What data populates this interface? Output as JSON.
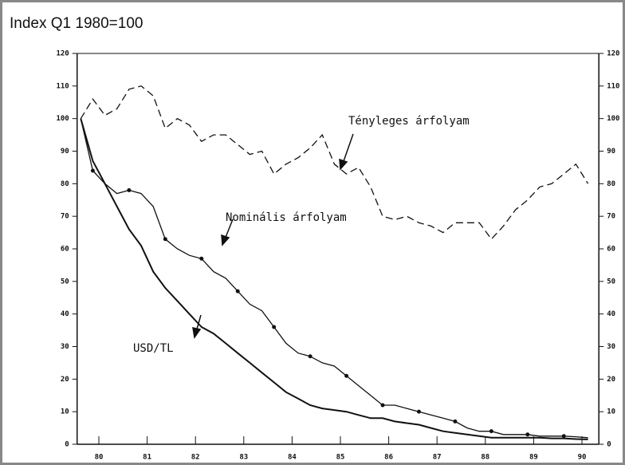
{
  "chart_data": {
    "type": "line",
    "title": "Index Q1 1980=100",
    "x": [
      79.625,
      79.875,
      80.125,
      80.375,
      80.625,
      80.875,
      81.125,
      81.375,
      81.625,
      81.875,
      82.125,
      82.375,
      82.625,
      82.875,
      83.125,
      83.375,
      83.625,
      83.875,
      84.125,
      84.375,
      84.625,
      84.875,
      85.125,
      85.375,
      85.625,
      85.875,
      86.125,
      86.375,
      86.625,
      86.875,
      87.125,
      87.375,
      87.625,
      87.875,
      88.125,
      88.375,
      88.625,
      88.875,
      89.125,
      89.375,
      89.625,
      89.875,
      90.125
    ],
    "series": [
      {
        "name": "Tényleges árfolyam",
        "color": "#111111",
        "dashed": true,
        "values": [
          100,
          106,
          101,
          103,
          109,
          110,
          107,
          97,
          100,
          98,
          93,
          95,
          95,
          92,
          89,
          90,
          83,
          86,
          88,
          91,
          95,
          86,
          83,
          85,
          79,
          70,
          69,
          70,
          68,
          67,
          65,
          68,
          68,
          68,
          63,
          67,
          72,
          75,
          79,
          80,
          83,
          86,
          80
        ]
      },
      {
        "name": "Nominális árfolyam",
        "color": "#111111",
        "dashed": false,
        "markers": true,
        "values": [
          100,
          84,
          80,
          77,
          78,
          77,
          73,
          63,
          60,
          58,
          57,
          53,
          51,
          47,
          43,
          41,
          36,
          31,
          28,
          27,
          25,
          24,
          21,
          18,
          15,
          12,
          12,
          11,
          10,
          9,
          8,
          7,
          5,
          4,
          4,
          3,
          3,
          3,
          2.5,
          2.5,
          2.5,
          2.3,
          2
        ]
      },
      {
        "name": "USD/TL",
        "color": "#111111",
        "dashed": false,
        "width": 2,
        "values": [
          100,
          87,
          80,
          73,
          66,
          61,
          53,
          48,
          44,
          40,
          36,
          34,
          31,
          28,
          25,
          22,
          19,
          16,
          14,
          12,
          11,
          10.5,
          10,
          9,
          8,
          8,
          7,
          6.5,
          6,
          5,
          4,
          3.5,
          3,
          2.5,
          2,
          2,
          2,
          2,
          2,
          1.8,
          1.8,
          1.6,
          1.5
        ]
      }
    ],
    "xlim": [
      79.55,
      90.35
    ],
    "xticks": [
      80,
      81,
      82,
      83,
      84,
      85,
      86,
      87,
      88,
      89,
      90
    ],
    "ylim": [
      0,
      120
    ],
    "yticks": [
      0,
      10,
      20,
      30,
      40,
      50,
      60,
      70,
      80,
      90,
      100,
      110,
      120
    ],
    "y2lim": [
      0,
      120
    ],
    "y2ticks": [
      0,
      10,
      20,
      30,
      40,
      50,
      60,
      70,
      80,
      90,
      100,
      110,
      120
    ]
  }
}
